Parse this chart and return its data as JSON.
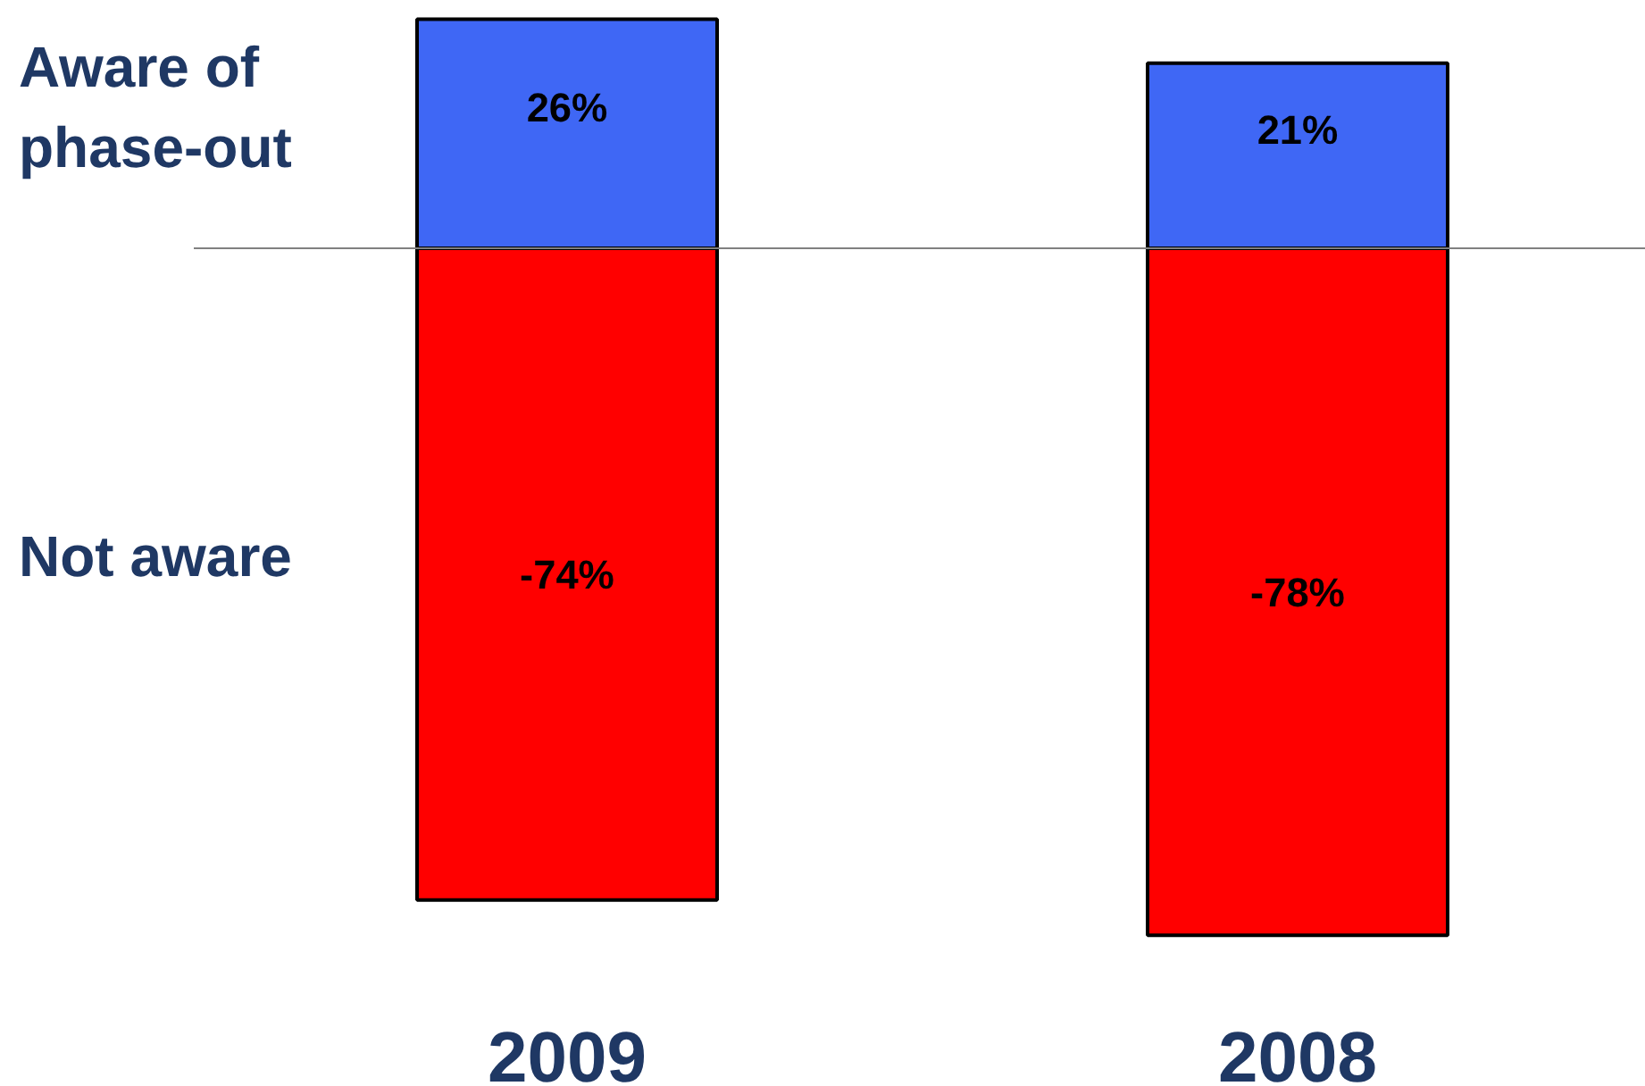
{
  "chart_data": {
    "type": "bar",
    "stacked": true,
    "categories": [
      "2009",
      "2008"
    ],
    "series": [
      {
        "name": "Aware of phase-out",
        "color": "#3f67f5",
        "values": [
          26,
          21
        ],
        "value_labels": [
          "26%",
          "21%"
        ]
      },
      {
        "name": "Not aware",
        "color": "#ff0000",
        "values": [
          -74,
          -78
        ],
        "value_labels": [
          "-74%",
          "-78%"
        ]
      }
    ]
  }
}
